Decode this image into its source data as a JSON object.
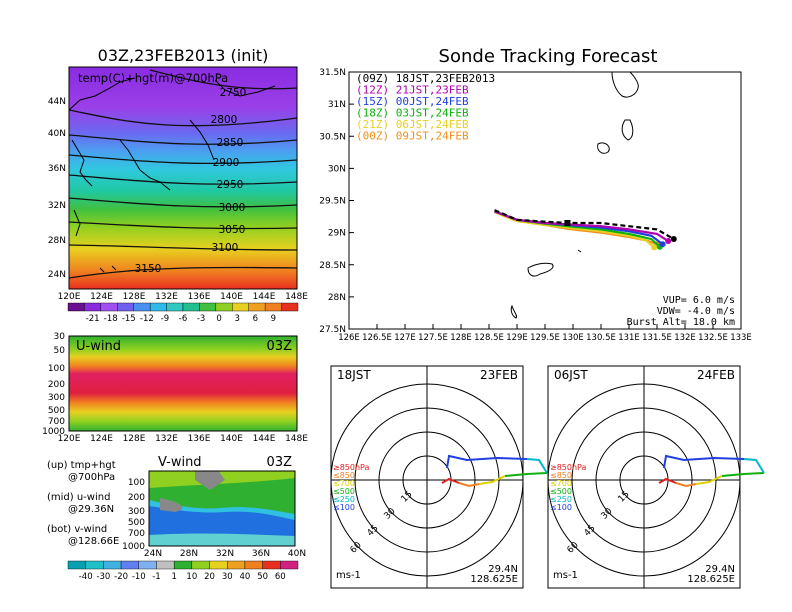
{
  "left": {
    "title": "03Z,23FEB2013 (init)",
    "map_label": "temp(C)+hgt(m)@700hPa",
    "contour_labels": [
      "2750",
      "2800",
      "2850",
      "2900",
      "2950",
      "3000",
      "3050",
      "3100",
      "3150"
    ],
    "lat_labels": [
      "44N",
      "40N",
      "36N",
      "32N",
      "28N",
      "24N"
    ],
    "lon_labels": [
      "120E",
      "124E",
      "128E",
      "132E",
      "136E",
      "140E",
      "144E",
      "148E"
    ],
    "temp_scale": [
      "-21",
      "-18",
      "-15",
      "-12",
      "-9",
      "-6",
      "-3",
      "0",
      "3",
      "6",
      "9"
    ],
    "u_title": "U-wind",
    "u_time": "03Z",
    "v_title": "V-wind",
    "v_time": "03Z",
    "p_labels": [
      "30",
      "50",
      "100",
      "200",
      "300",
      "500",
      "700",
      "1000"
    ],
    "v_lat_labels": [
      "24N",
      "28N",
      "32N",
      "36N",
      "40N"
    ],
    "wind_scale": [
      "-40",
      "-30",
      "-20",
      "-10",
      "-1",
      "1",
      "10",
      "20",
      "30",
      "40",
      "50",
      "60"
    ],
    "notes": [
      {
        "a": "(up) tmp+hgt",
        "b": "@700hPa"
      },
      {
        "a": "(mid) u-wind",
        "b": "@29.36N"
      },
      {
        "a": "(bot) v-wind",
        "b": "@128.66E"
      }
    ]
  },
  "track": {
    "title": "Sonde Tracking Forecast",
    "legend": [
      {
        "text": "(09Z) 18JST,23FEB2013",
        "color": "#000000"
      },
      {
        "text": "(12Z) 21JST,23FEB",
        "color": "#b000b0"
      },
      {
        "text": "(15Z) 00JST,24FEB",
        "color": "#2040e0"
      },
      {
        "text": "(18Z) 03JST,24FEB",
        "color": "#10b010"
      },
      {
        "text": "(21Z) 06JST,24FEB",
        "color": "#e8d020"
      },
      {
        "text": "(00Z) 09JST,24FEB",
        "color": "#f09020"
      }
    ],
    "ylabels": [
      "31.5N",
      "31N",
      "30.5N",
      "30N",
      "29.5N",
      "29N",
      "28.5N",
      "28N",
      "27.5N"
    ],
    "xlabels": [
      "126E",
      "126.5E",
      "127E",
      "127.5E",
      "128E",
      "128.5E",
      "129E",
      "129.5E",
      "130E",
      "130.5E",
      "131E",
      "131.5E",
      "132E",
      "132.5E",
      "133E"
    ],
    "params": [
      "VUP=  6.0  m/s",
      "VDW= -4.0  m/s",
      "Burst Alt= 18.0  km"
    ]
  },
  "hodographs": [
    {
      "time": "18JST",
      "date": "23FEB",
      "lat": "29.4N",
      "lon": "128.625E",
      "unit": "ms-1"
    },
    {
      "time": "06JST",
      "date": "24FEB",
      "lat": "29.4N",
      "lon": "128.625E",
      "unit": "ms-1"
    }
  ],
  "ring_labels": [
    "15",
    "30",
    "45",
    "60"
  ],
  "pressure_legend": [
    {
      "text": "≥850hPa",
      "color": "#e02020"
    },
    {
      "text": "≤850",
      "color": "#f08020"
    },
    {
      "text": "≤700",
      "color": "#e0d000"
    },
    {
      "text": "≤500",
      "color": "#10b010"
    },
    {
      "text": "≤250",
      "color": "#00b8c8"
    },
    {
      "text": "≤100",
      "color": "#2040e0"
    }
  ],
  "chart_data": {
    "type": "line",
    "title": "Sonde Tracking Forecast",
    "xlim": [
      126,
      133
    ],
    "ylim": [
      27.5,
      31.5
    ],
    "launch": {
      "lon": 129.9,
      "lat": 29.15
    },
    "series": [
      {
        "name": "(09Z) 18JST,23FEB2013",
        "color": "#000000",
        "lon": [
          128.6,
          129.0,
          129.5,
          129.9,
          130.5,
          131.0,
          131.5,
          131.8
        ],
        "lat": [
          29.35,
          29.2,
          29.17,
          29.15,
          29.15,
          29.1,
          29.05,
          28.9
        ]
      },
      {
        "name": "(12Z) 21JST,23FEB",
        "color": "#b000b0",
        "lon": [
          128.6,
          129.0,
          129.5,
          129.9,
          130.5,
          131.0,
          131.5,
          131.7
        ],
        "lat": [
          29.33,
          29.2,
          29.15,
          29.13,
          29.1,
          29.05,
          28.98,
          28.87
        ]
      },
      {
        "name": "(15Z) 00JST,24FEB",
        "color": "#2040e0",
        "lon": [
          128.6,
          129.0,
          129.5,
          129.9,
          130.5,
          131.0,
          131.4,
          131.6
        ],
        "lat": [
          29.33,
          29.2,
          29.15,
          29.12,
          29.08,
          29.02,
          28.95,
          28.82
        ]
      },
      {
        "name": "(18Z) 03JST,24FEB",
        "color": "#10b010",
        "lon": [
          128.6,
          129.0,
          129.5,
          129.9,
          130.5,
          131.0,
          131.4,
          131.55
        ],
        "lat": [
          29.33,
          29.2,
          29.14,
          29.1,
          29.05,
          28.98,
          28.9,
          28.78
        ]
      },
      {
        "name": "(21Z) 06JST,24FEB",
        "color": "#e8d020",
        "lon": [
          128.6,
          129.0,
          129.5,
          129.9,
          130.5,
          131.0,
          131.3,
          131.45
        ],
        "lat": [
          29.32,
          29.18,
          29.12,
          29.08,
          29.02,
          28.95,
          28.88,
          28.77
        ]
      },
      {
        "name": "(00Z) 09JST,24FEB",
        "color": "#f09020",
        "lon": [
          128.6,
          129.0,
          129.5,
          129.9,
          130.5,
          131.0,
          131.3,
          131.5
        ],
        "lat": [
          29.32,
          29.18,
          29.12,
          29.06,
          29.0,
          28.93,
          28.88,
          28.82
        ]
      }
    ]
  }
}
